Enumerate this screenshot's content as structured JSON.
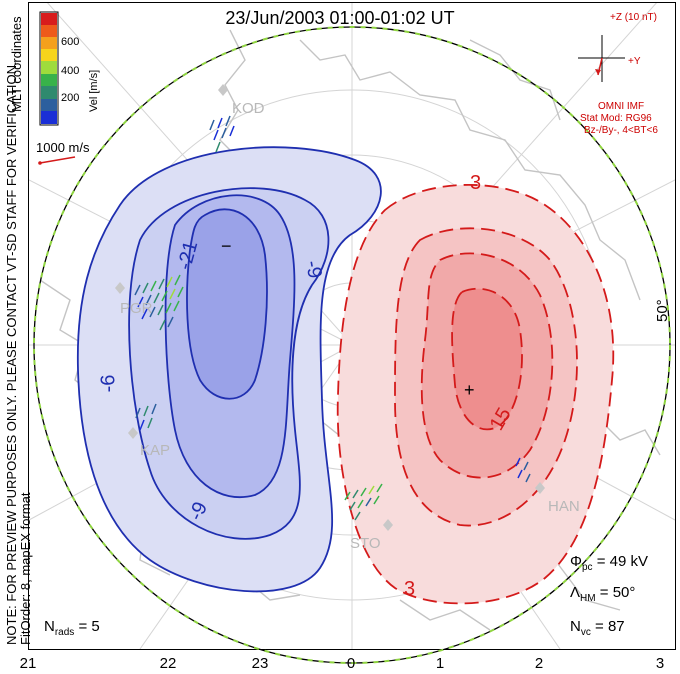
{
  "title": "23/Jun/2003 01:00-01:02 UT",
  "colorbar": {
    "ticks": [
      "600",
      "400",
      "200"
    ],
    "label": "Vel [m/s]",
    "colors": [
      "#d81c1c",
      "#ee5a1a",
      "#f5a01d",
      "#f7d41c",
      "#9fdc3c",
      "#38b24a",
      "#2f8a6e",
      "#2c5f9e",
      "#1a2fd6"
    ]
  },
  "coords_label": "MLT coordinates",
  "vector_scale": "1000 m/s",
  "notice": {
    "line1": "NOTE: FOR PREVIEW PURPOSES ONLY. PLEASE CONTACT VT-SD STAFF FOR VERIFICATION.",
    "line2": "FitOrder: 8, mapEX format"
  },
  "imf": {
    "z_label": "+Z (10 nT)",
    "y_label": "+Y",
    "source": "OMNI IMF",
    "stat_mod": "Stat Mod: RG96",
    "condition": "Bz-/By-, 4<BT<6"
  },
  "contours": {
    "neg_labels": [
      "-21",
      "-9",
      "-9",
      "-6"
    ],
    "neg_min_marker": "−",
    "pos_labels": [
      "3",
      "15",
      "3"
    ],
    "pos_max_marker": "+",
    "neg_color": "#1f2fb0",
    "pos_color": "#d41a1a"
  },
  "stations": [
    "KOD",
    "PGR",
    "KAP",
    "STO",
    "HAN"
  ],
  "latitude_label": "50°",
  "stats": {
    "phi_pc": "= 49 kV",
    "lambda_hm": "= 50°",
    "n_vc": "= 87",
    "n_rads": "= 5"
  },
  "mlt_ticks": [
    "21",
    "22",
    "23",
    "0",
    "1",
    "2",
    "3"
  ]
}
